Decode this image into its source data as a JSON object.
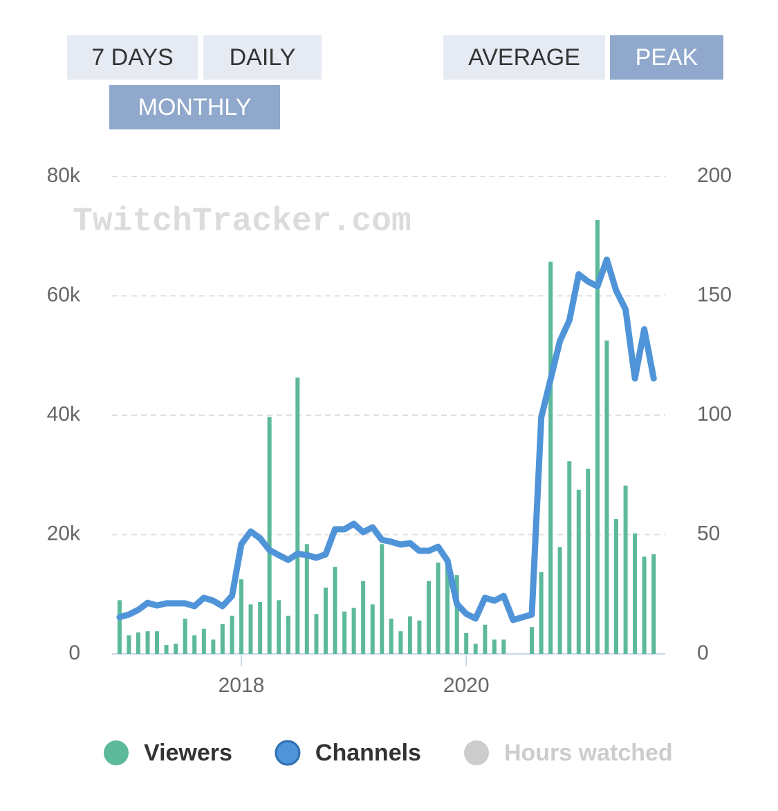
{
  "buttons": [
    {
      "label": "7 DAYS",
      "active": false
    },
    {
      "label": "DAILY",
      "active": false
    },
    {
      "label": "MONTHLY",
      "active": true
    },
    {
      "label": "AVERAGE",
      "active": false
    },
    {
      "label": "PEAK",
      "active": true
    }
  ],
  "chart_data": {
    "type": "bar-line",
    "watermark": "TwitchTracker.com",
    "x": [
      2016.917,
      2017.0,
      2017.083,
      2017.167,
      2017.25,
      2017.333,
      2017.417,
      2017.5,
      2017.583,
      2017.667,
      2017.75,
      2017.833,
      2017.917,
      2018.0,
      2018.083,
      2018.167,
      2018.25,
      2018.333,
      2018.417,
      2018.5,
      2018.583,
      2018.667,
      2018.75,
      2018.833,
      2018.917,
      2019.0,
      2019.083,
      2019.167,
      2019.25,
      2019.333,
      2019.417,
      2019.5,
      2019.583,
      2019.667,
      2019.75,
      2019.833,
      2019.917,
      2020.0,
      2020.083,
      2020.167,
      2020.25,
      2020.333,
      2020.417,
      2020.5,
      2020.583,
      2020.667,
      2020.75,
      2020.833,
      2020.917,
      2021.0,
      2021.083,
      2021.167,
      2021.25,
      2021.333,
      2021.417,
      2021.5,
      2021.583,
      2021.667
    ],
    "xlim": [
      2016.85,
      2021.77
    ],
    "xticks": [
      2018,
      2020
    ],
    "ylim": [
      0,
      80000
    ],
    "yticks": [
      0,
      {
        "value": 20000,
        "label": "20k"
      },
      {
        "value": 40000,
        "label": "40k"
      },
      {
        "value": 60000,
        "label": "60k"
      },
      {
        "value": 80000,
        "label": "80k"
      }
    ],
    "y2lim": [
      0,
      200
    ],
    "y2ticks": [
      0,
      50,
      100,
      150,
      200
    ],
    "grid": true,
    "series": [
      {
        "name": "Viewers",
        "color": "#5cb99a",
        "kind": "bar",
        "values": [
          9000,
          3100,
          3600,
          3800,
          3800,
          1500,
          1700,
          5900,
          3100,
          4200,
          2400,
          5000,
          6400,
          12500,
          8300,
          8700,
          39700,
          9000,
          6400,
          46300,
          18400,
          6700,
          11100,
          14600,
          7100,
          7700,
          12200,
          8300,
          18400,
          5900,
          3800,
          6300,
          5600,
          12200,
          15300,
          15700,
          13200,
          3500,
          1700,
          4900,
          2400,
          2400,
          0,
          0,
          4500,
          13700,
          65700,
          17900,
          32300,
          27500,
          31000,
          72700,
          52500,
          22600,
          28200,
          20200,
          16300,
          16700
        ]
      },
      {
        "name": "Channels",
        "color": "#4f94d8",
        "kind": "line",
        "axis": "y2",
        "values": [
          15.4,
          16.5,
          18.5,
          21.4,
          20.3,
          21.2,
          21.2,
          21.2,
          20,
          23.5,
          22.3,
          20,
          24.3,
          46,
          51.3,
          48.4,
          43.5,
          41.4,
          39.4,
          42,
          41.4,
          40.3,
          41.7,
          52.2,
          52.2,
          54.5,
          51,
          53,
          47.8,
          47,
          45.8,
          46.4,
          43.2,
          43.2,
          44.9,
          39.1,
          20.9,
          16.8,
          14.8,
          23.5,
          22.3,
          24.3,
          14.2,
          15.4,
          16.5,
          99.1,
          115,
          131,
          139.7,
          159,
          156,
          154,
          165.2,
          152.2,
          144.3,
          115.4,
          136,
          115.4
        ]
      }
    ],
    "hidden_series": [
      {
        "name": "Hours watched",
        "color": "#cccccc"
      }
    ]
  }
}
